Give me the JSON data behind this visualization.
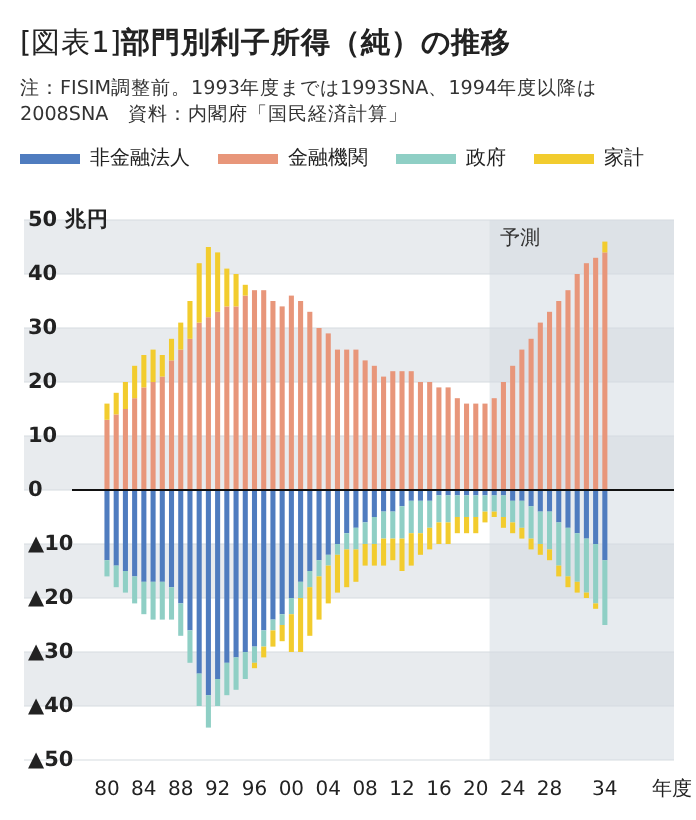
{
  "chart_data": {
    "type": "bar",
    "stacked": true,
    "title": "[図表1]**部門別利子所得（純）の推移**",
    "subtitle": "注：FISIM調整前。1993年度までは1993SNA、1994年度以降は2008SNA",
    "annotations": [
      "資料：内閣府「国民経済計算」"
    ],
    "xlabel": "年度",
    "x": [
      1980,
      1981,
      1982,
      1983,
      1984,
      1985,
      1986,
      1987,
      1988,
      1989,
      1990,
      1991,
      1992,
      1993,
      1994,
      1995,
      1996,
      1997,
      1998,
      1999,
      2000,
      2001,
      2002,
      2003,
      2004,
      2005,
      2006,
      2007,
      2008,
      2009,
      2010,
      2011,
      2012,
      2013,
      2014,
      2015,
      2016,
      2017,
      2018,
      2019,
      2020,
      2021,
      2022,
      2023,
      2024,
      2025,
      2026,
      2027,
      2028,
      2029,
      2030,
      2031,
      2032,
      2033,
      2034
    ],
    "xlim": [
      1971,
      2041.5
    ],
    "xticks": [
      {
        "value": 1980,
        "label": "80"
      },
      {
        "value": 1984,
        "label": "84"
      },
      {
        "value": 1988,
        "label": "88"
      },
      {
        "value": 1992,
        "label": "92"
      },
      {
        "value": 1996,
        "label": "96"
      },
      {
        "value": 2000,
        "label": "00"
      },
      {
        "value": 2004,
        "label": "04"
      },
      {
        "value": 2008,
        "label": "08"
      },
      {
        "value": 2012,
        "label": "12"
      },
      {
        "value": 2016,
        "label": "16"
      },
      {
        "value": 2020,
        "label": "20"
      },
      {
        "value": 2024,
        "label": "24"
      },
      {
        "value": 2028,
        "label": "28"
      },
      {
        "value": 2034,
        "label": "34"
      }
    ],
    "ylim": [
      -50,
      50
    ],
    "yticks": [
      {
        "value": 50,
        "label": "50 兆円"
      },
      40,
      30,
      20,
      10,
      0,
      {
        "value": -10,
        "label": "▲10"
      },
      {
        "value": -20,
        "label": "▲20"
      },
      {
        "value": -30,
        "label": "▲30"
      },
      {
        "value": -40,
        "label": "▲40"
      },
      {
        "value": -50,
        "label": "▲50"
      }
    ],
    "grid": "y",
    "legend": "top",
    "ref_lines": [
      {
        "axis": "y",
        "value": 0,
        "color": "#111111"
      }
    ],
    "bands": [
      {
        "axis": "x",
        "from": 2021.5,
        "to": 2041.5,
        "label": "予測",
        "color": "#d3dbe1"
      }
    ],
    "series": [
      {
        "name": "非金融法人",
        "color": "#4f7cbf",
        "values": [
          -13,
          -14,
          -15,
          -16,
          -17,
          -17,
          -17,
          -18,
          -21,
          -26,
          -34,
          -38,
          -35,
          -32,
          -31,
          -30,
          -29,
          -26,
          -24,
          -23,
          -20,
          -17,
          -15,
          -13,
          -12,
          -10,
          -8,
          -7,
          -6,
          -5,
          -4,
          -4,
          -3,
          -2,
          -2,
          -2,
          -1,
          -1,
          -1,
          -1,
          -1,
          -1,
          -1,
          -1,
          -2,
          -2,
          -3,
          -4,
          -4,
          -6,
          -7,
          -8,
          -9,
          -10,
          -13
        ]
      },
      {
        "name": "金融機関",
        "color": "#e8967a",
        "values": [
          13,
          14,
          15,
          17,
          19,
          20,
          21,
          24,
          26,
          28,
          31,
          32,
          33,
          34,
          34,
          36,
          37,
          37,
          35,
          34,
          36,
          35,
          33,
          30,
          29,
          26,
          26,
          26,
          24,
          23,
          21,
          22,
          22,
          22,
          20,
          20,
          19,
          19,
          17,
          16,
          16,
          16,
          17,
          20,
          23,
          26,
          28,
          31,
          33,
          35,
          37,
          40,
          42,
          43,
          44
        ]
      },
      {
        "name": "政府",
        "color": "#8fcfc5",
        "values": [
          -3,
          -4,
          -4,
          -5,
          -6,
          -7,
          -7,
          -6,
          -6,
          -6,
          -6,
          -6,
          -5,
          -6,
          -6,
          -5,
          -3,
          -3,
          -2,
          -2,
          -3,
          -3,
          -3,
          -3,
          -2,
          -2,
          -3,
          -4,
          -4,
          -5,
          -5,
          -5,
          -6,
          -6,
          -6,
          -5,
          -5,
          -5,
          -4,
          -4,
          -4,
          -3,
          -3,
          -4,
          -4,
          -5,
          -6,
          -6,
          -7,
          -8,
          -9,
          -9,
          -10,
          -11,
          -12
        ]
      },
      {
        "name": "家計",
        "color": "#f2cc2e",
        "values": [
          3,
          4,
          5,
          6,
          6,
          6,
          4,
          4,
          5,
          7,
          11,
          13,
          11,
          7,
          6,
          2,
          -1,
          -2,
          -3,
          -3,
          -7,
          -10,
          -9,
          -8,
          -7,
          -7,
          -7,
          -6,
          -4,
          -4,
          -5,
          -4,
          -6,
          -6,
          -4,
          -4,
          -4,
          -4,
          -3,
          -3,
          -3,
          -2,
          -1,
          -2,
          -2,
          -2,
          -2,
          -2,
          -2,
          -2,
          -2,
          -2,
          -1,
          -1,
          2
        ]
      }
    ]
  }
}
